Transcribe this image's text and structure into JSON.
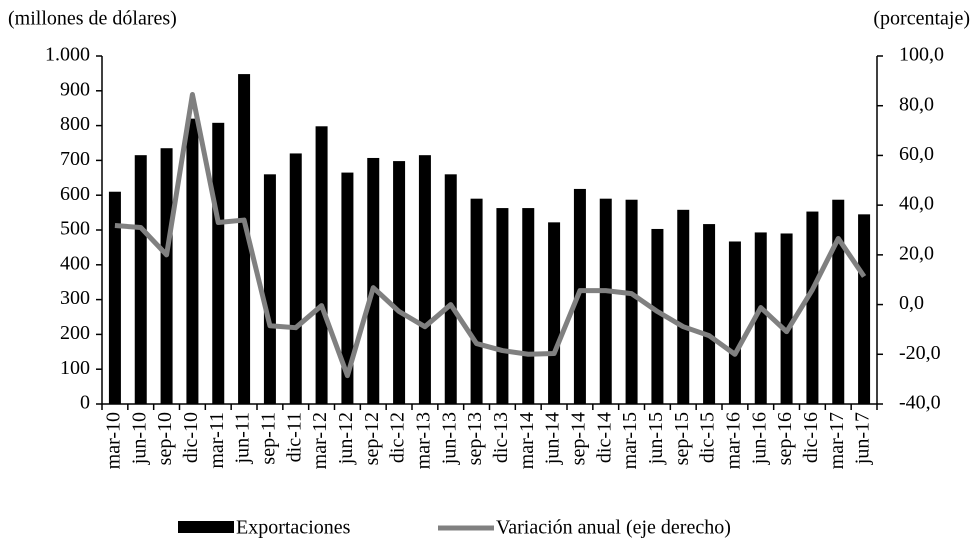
{
  "chart_data": {
    "type": "bar_line",
    "y_label": "(millones de dólares)",
    "y2_label": "(porcentaje)",
    "categories": [
      "mar-10",
      "jun-10",
      "sep-10",
      "dic-10",
      "mar-11",
      "jun-11",
      "sep-11",
      "dic-11",
      "mar-12",
      "jun-12",
      "sep-12",
      "dic-12",
      "mar-13",
      "jun-13",
      "sep-13",
      "dic-13",
      "mar-14",
      "jun-14",
      "sep-14",
      "dic-14",
      "mar-15",
      "jun-15",
      "sep-15",
      "dic-15",
      "mar-16",
      "jun-16",
      "sep-16",
      "dic-16",
      "mar-17",
      "jun-17"
    ],
    "series": [
      {
        "name": "Exportaciones",
        "color": "#000000",
        "type": "bar",
        "values": [
          610,
          715,
          735,
          820,
          808,
          948,
          660,
          720,
          798,
          665,
          707,
          698,
          715,
          660,
          590,
          563,
          563,
          522,
          618,
          590,
          587,
          503,
          558,
          517,
          467,
          493,
          490,
          553,
          587,
          545
        ]
      },
      {
        "name": "Variación anual (eje derecho)",
        "color": "#808080",
        "type": "line",
        "axis": "y2",
        "values": [
          31.8,
          31,
          20,
          84.5,
          33,
          34,
          -8.5,
          -9.3,
          -0.4,
          -28.6,
          6.8,
          -2.8,
          -8.9,
          0,
          -15.7,
          -18.5,
          -20,
          -19.7,
          5.6,
          5.6,
          4.4,
          -2.8,
          -8.9,
          -12.5,
          -20,
          -1.2,
          -10.9,
          6,
          26.6,
          11.3
        ]
      }
    ],
    "ylim": [
      0,
      1000
    ],
    "yticks": [
      0,
      100,
      200,
      300,
      400,
      500,
      600,
      700,
      800,
      900,
      {
        "value": 1000,
        "label": "1.000"
      }
    ],
    "y2lim": [
      -40,
      100
    ],
    "y2ticks": [
      {
        "value": -40,
        "label": "-40,0"
      },
      {
        "value": -20,
        "label": "-20,0"
      },
      {
        "value": 0,
        "label": "0,0"
      },
      {
        "value": 20,
        "label": "20,0"
      },
      {
        "value": 40,
        "label": "40,0"
      },
      {
        "value": 60,
        "label": "60,0"
      },
      {
        "value": 80,
        "label": "80,0"
      },
      {
        "value": 100,
        "label": "100,0"
      }
    ],
    "grid": false,
    "legend": "bottom"
  }
}
